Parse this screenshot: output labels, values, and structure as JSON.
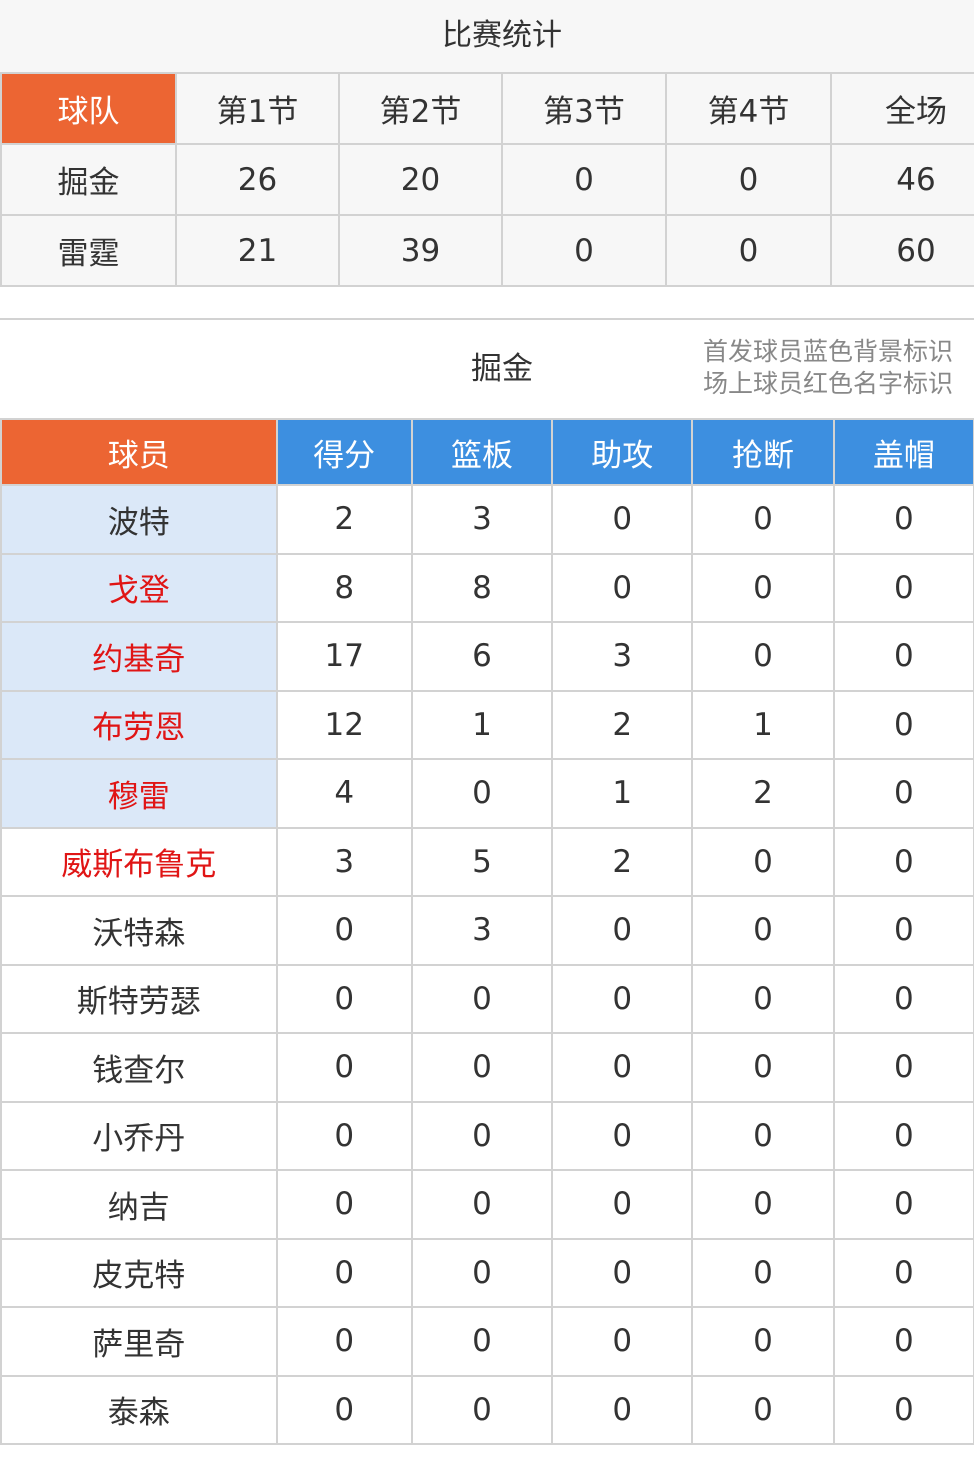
{
  "title": "比赛统计",
  "score_table": {
    "header": [
      "球队",
      "第1节",
      "第2节",
      "第3节",
      "第4节",
      "全场"
    ],
    "rows": [
      [
        "掘金",
        26,
        20,
        0,
        0,
        46
      ],
      [
        "雷霆",
        21,
        39,
        0,
        0,
        60
      ]
    ]
  },
  "team_section": {
    "team": "掘金",
    "notes": [
      "首发球员蓝色背景标识",
      "场上球员红色名字标识"
    ]
  },
  "player_table": {
    "header": [
      "球员",
      "得分",
      "篮板",
      "助攻",
      "抢断",
      "盖帽"
    ],
    "rows": [
      {
        "name": "波特",
        "starter": true,
        "on_court": false,
        "stats": [
          2,
          3,
          0,
          0,
          0
        ]
      },
      {
        "name": "戈登",
        "starter": true,
        "on_court": true,
        "stats": [
          8,
          8,
          0,
          0,
          0
        ]
      },
      {
        "name": "约基奇",
        "starter": true,
        "on_court": true,
        "stats": [
          17,
          6,
          3,
          0,
          0
        ]
      },
      {
        "name": "布劳恩",
        "starter": true,
        "on_court": true,
        "stats": [
          12,
          1,
          2,
          1,
          0
        ]
      },
      {
        "name": "穆雷",
        "starter": true,
        "on_court": true,
        "stats": [
          4,
          0,
          1,
          2,
          0
        ]
      },
      {
        "name": "威斯布鲁克",
        "starter": false,
        "on_court": true,
        "stats": [
          3,
          5,
          2,
          0,
          0
        ]
      },
      {
        "name": "沃特森",
        "starter": false,
        "on_court": false,
        "stats": [
          0,
          3,
          0,
          0,
          0
        ]
      },
      {
        "name": "斯特劳瑟",
        "starter": false,
        "on_court": false,
        "stats": [
          0,
          0,
          0,
          0,
          0
        ]
      },
      {
        "name": "钱查尔",
        "starter": false,
        "on_court": false,
        "stats": [
          0,
          0,
          0,
          0,
          0
        ]
      },
      {
        "name": "小乔丹",
        "starter": false,
        "on_court": false,
        "stats": [
          0,
          0,
          0,
          0,
          0
        ]
      },
      {
        "name": "纳吉",
        "starter": false,
        "on_court": false,
        "stats": [
          0,
          0,
          0,
          0,
          0
        ]
      },
      {
        "name": "皮克特",
        "starter": false,
        "on_court": false,
        "stats": [
          0,
          0,
          0,
          0,
          0
        ]
      },
      {
        "name": "萨里奇",
        "starter": false,
        "on_court": false,
        "stats": [
          0,
          0,
          0,
          0,
          0
        ]
      },
      {
        "name": "泰森",
        "starter": false,
        "on_court": false,
        "stats": [
          0,
          0,
          0,
          0,
          0
        ]
      }
    ]
  }
}
